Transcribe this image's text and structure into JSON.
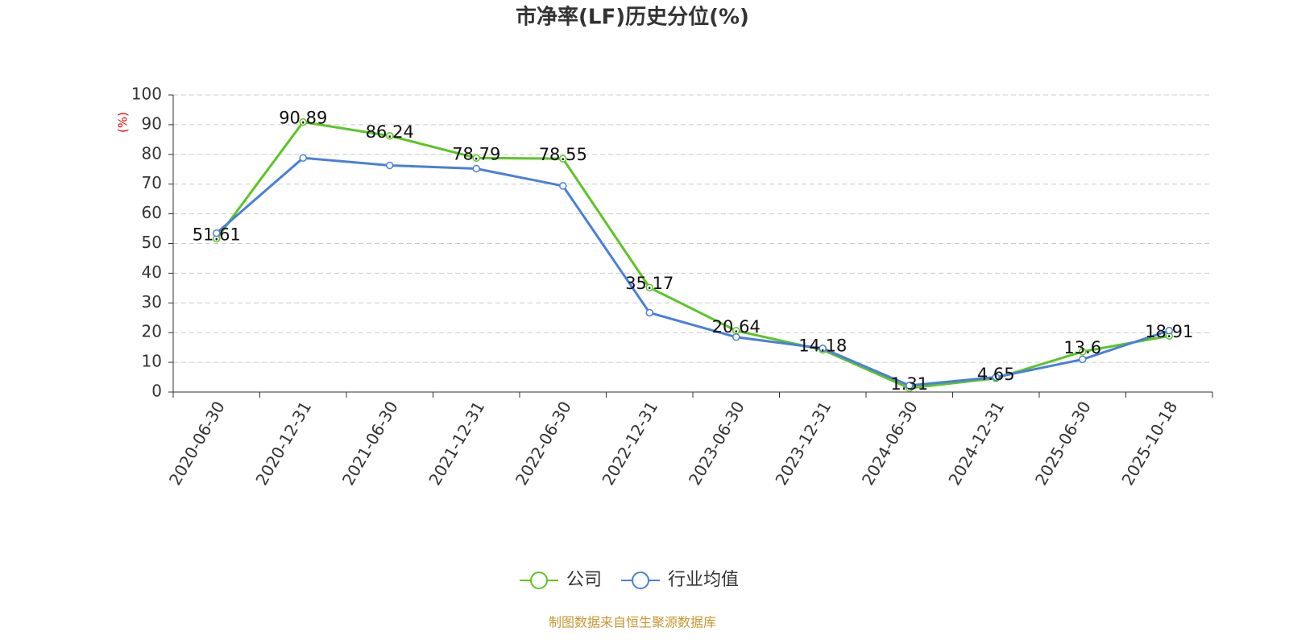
{
  "chart_data": {
    "type": "line",
    "title": "市净率(LF)历史分位(%)",
    "y_label": "(%)",
    "categories": [
      "2020-06-30",
      "2020-12-31",
      "2021-06-30",
      "2021-12-31",
      "2022-06-30",
      "2022-12-31",
      "2023-06-30",
      "2023-12-31",
      "2024-06-30",
      "2024-12-31",
      "2025-06-30",
      "2025-10-18"
    ],
    "series": [
      {
        "name": "公司",
        "color": "#5cc524",
        "values": [
          51.61,
          90.89,
          86.24,
          78.79,
          78.55,
          35.17,
          20.64,
          14.18,
          1.31,
          4.65,
          13.6,
          18.91
        ],
        "show_labels": true
      },
      {
        "name": "行业均值",
        "color": "#4a7fdb",
        "values": [
          53.5,
          78.8,
          76.3,
          75.2,
          69.4,
          26.7,
          18.5,
          14.7,
          2.2,
          5.0,
          11.0,
          20.7
        ],
        "show_labels": false
      }
    ],
    "ylim": [
      0,
      100
    ],
    "yticks": [
      0,
      10,
      20,
      30,
      40,
      50,
      60,
      70,
      80,
      90,
      100
    ],
    "grid": true,
    "legend": "bottom",
    "source": "制图数据来自恒生聚源数据库"
  }
}
